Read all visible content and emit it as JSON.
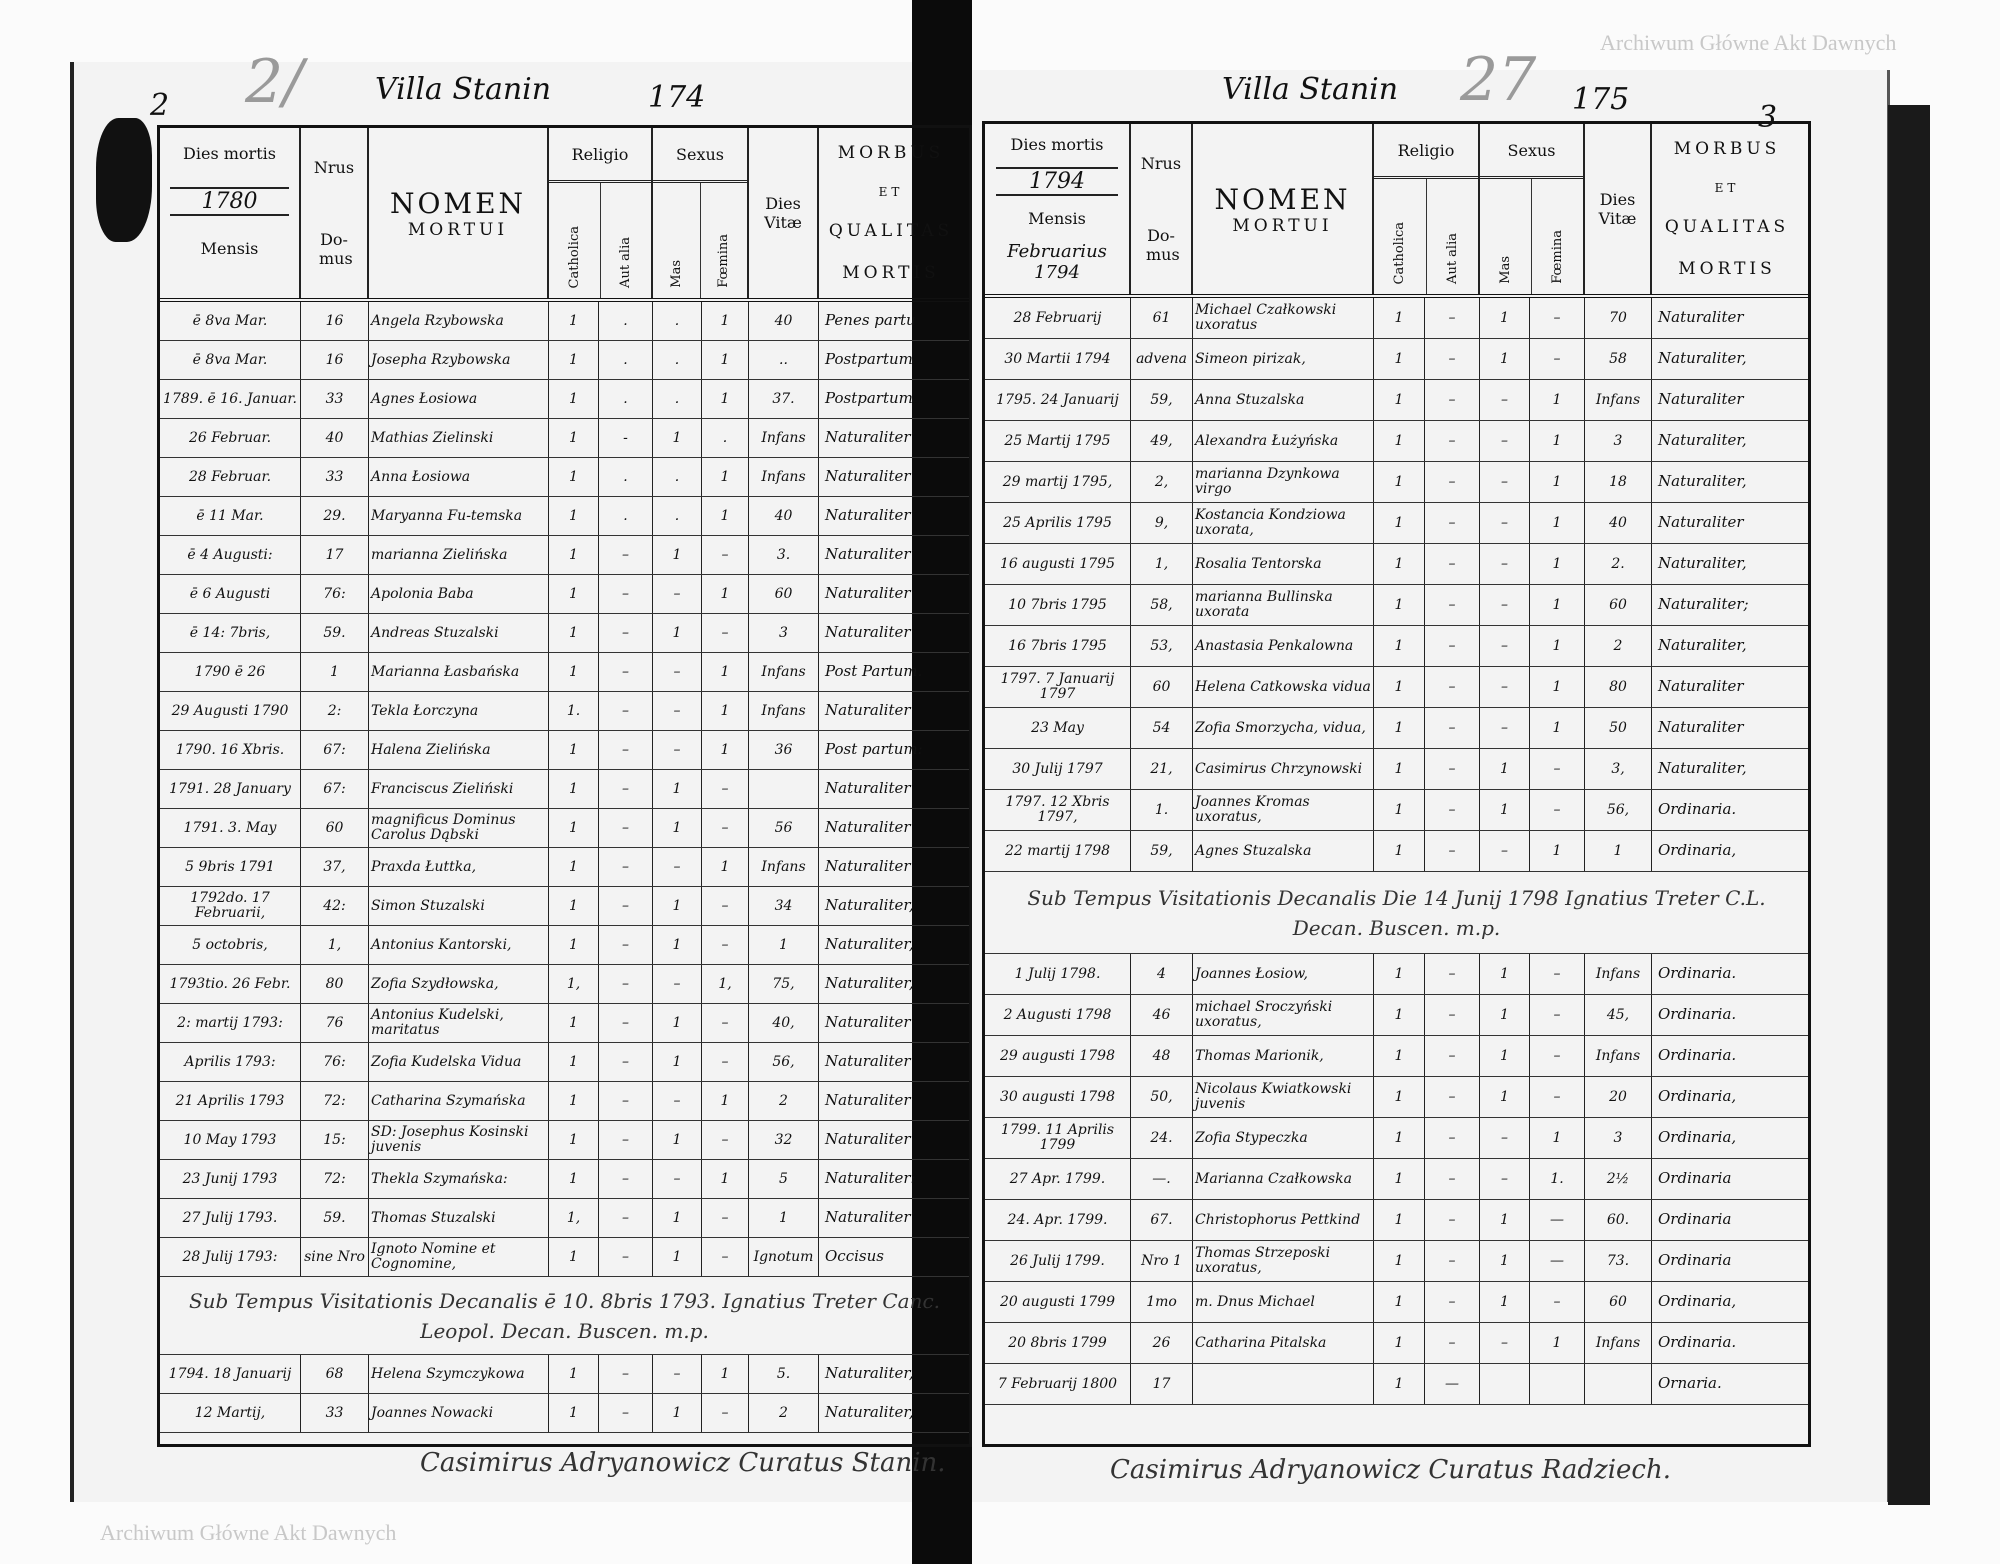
{
  "watermark": "Archiwum Główne Akt Dawnych",
  "header_labels": {
    "dies_mortis": "Dies mortis",
    "mensis": "Mensis",
    "nrus": "Nrus",
    "domus": "Do- mus",
    "nomen": "NOMEN",
    "mortui": "MORTUI",
    "religio": "Religio",
    "catholica": "Catholica",
    "aut_alia": "Aut alia",
    "sexus": "Sexus",
    "mas": "Mas",
    "foemina": "Fœmina",
    "dies_vitae": "Dies Vitæ",
    "morbus": "MORBUS",
    "et": "ET",
    "qualitas": "QUALITAS",
    "mortis": "MORTIS"
  },
  "left_page": {
    "folio": "2",
    "village": "Villa Stanin",
    "page_number": "174",
    "pencil_mark": "2/",
    "year": "1780",
    "month": "",
    "rows": [
      [
        "ē 8va Mar.",
        "16",
        "Angela Rzybowska",
        "1",
        ".",
        ".",
        "1",
        "40",
        "Penes partu"
      ],
      [
        "ē 8va Mar.",
        "16",
        "Josepha Rzybowska",
        "1",
        ".",
        ".",
        "1",
        "..",
        "Postpartum"
      ],
      [
        "1789. ē 16. Januar.",
        "33",
        "Agnes Łosiowa",
        "1",
        ".",
        ".",
        "1",
        "37.",
        "Postpartum"
      ],
      [
        "26 Februar.",
        "40",
        "Mathias Zielinski",
        "1",
        "-",
        "1",
        ".",
        "Infans",
        "Naturaliter"
      ],
      [
        "28 Februar.",
        "33",
        "Anna Łosiowa",
        "1",
        ".",
        ".",
        "1",
        "Infans",
        "Naturaliter"
      ],
      [
        "ē 11 Mar.",
        "29.",
        "Maryanna Fu-temska",
        "1",
        ".",
        ".",
        "1",
        "40",
        "Naturaliter"
      ],
      [
        "ē 4 Augusti:",
        "17",
        "marianna Zielińska",
        "1",
        "–",
        "1",
        "–",
        "3.",
        "Naturaliter"
      ],
      [
        "ē 6 Augusti",
        "76:",
        "Apolonia Baba",
        "1",
        "–",
        "–",
        "1",
        "60",
        "Naturaliter"
      ],
      [
        "ē 14: 7bris,",
        "59.",
        "Andreas Stuzalski",
        "1",
        "–",
        "1",
        "–",
        "3",
        "Naturaliter"
      ],
      [
        "1790 ē 26",
        "1",
        "Marianna Łasbańska",
        "1",
        "–",
        "–",
        "1",
        "Infans",
        "Post Partum."
      ],
      [
        "29 Augusti 1790",
        "2:",
        "Tekla Łorczyna",
        "1.",
        "–",
        "–",
        "1",
        "Infans",
        "Naturaliter"
      ],
      [
        "1790. 16 Xbris.",
        "67:",
        "Halena Zielińska",
        "1",
        "–",
        "–",
        "1",
        "36",
        "Post partum:"
      ],
      [
        "1791. 28 January",
        "67:",
        "Franciscus Zieliński",
        "1",
        "–",
        "1",
        "–",
        "",
        "Naturaliter"
      ],
      [
        "1791. 3. May",
        "60",
        "magnificus Dominus Carolus Dąbski",
        "1",
        "–",
        "1",
        "–",
        "56",
        "Naturaliter"
      ],
      [
        "5 9bris 1791",
        "37,",
        "Praxda Łuttka,",
        "1",
        "–",
        "–",
        "1",
        "Infans",
        "Naturaliter"
      ],
      [
        "1792do. 17 Februarii,",
        "42:",
        "Simon Stuzalski",
        "1",
        "–",
        "1",
        "–",
        "34",
        "Naturaliter,"
      ],
      [
        "5 octobris,",
        "1,",
        "Antonius Kantorski,",
        "1",
        "–",
        "1",
        "–",
        "1",
        "Naturaliter,"
      ],
      [
        "1793tio. 26 Febr.",
        "80",
        "Zofia Szydłowska,",
        "1,",
        "–",
        "–",
        "1,",
        "75,",
        "Naturaliter,"
      ],
      [
        "2: martij 1793:",
        "76",
        "Antonius Kudelski, maritatus",
        "1",
        "–",
        "1",
        "–",
        "40,",
        "Naturaliter"
      ],
      [
        "Aprilis 1793:",
        "76:",
        "Zofia Kudelska Vidua",
        "1",
        "–",
        "1",
        "–",
        "56,",
        "Naturaliter"
      ],
      [
        "21 Aprilis 1793",
        "72:",
        "Catharina Szymańska",
        "1",
        "–",
        "–",
        "1",
        "2",
        "Naturaliter"
      ],
      [
        "10 May 1793",
        "15:",
        "SD: Josephus Kosinski juvenis",
        "1",
        "–",
        "1",
        "–",
        "32",
        "Naturaliter"
      ],
      [
        "23 Junij 1793",
        "72:",
        "Thekla Szymańska:",
        "1",
        "–",
        "–",
        "1",
        "5",
        "Naturaliter:"
      ],
      [
        "27 Julij 1793.",
        "59.",
        "Thomas Stuzalski",
        "1,",
        "–",
        "1",
        "–",
        "1",
        "Naturaliter"
      ],
      [
        "28 Julij 1793:",
        "sine Nro",
        "Ignoto Nomine et Cognomine,",
        "1",
        "–",
        "1",
        "–",
        "Ignotum",
        "Occisus"
      ],
      [
        "1794. 18 Januarij",
        "68",
        "Helena Szymczykowa",
        "1",
        "–",
        "–",
        "1",
        "5.",
        "Naturaliter,"
      ],
      [
        "12 Martij,",
        "33",
        "Joannes Nowacki",
        "1",
        "–",
        "1",
        "–",
        "2",
        "Naturaliter,"
      ]
    ],
    "note": "Sub Tempus Visitationis Decanalis ē 10. 8bris 1793. Ignatius Treter Canc. Leopol. Decan. Buscen. m.p.",
    "signature": "Casimirus Adryanowicz Curatus Stanin."
  },
  "right_page": {
    "folio": "3",
    "village": "Villa Stanin",
    "page_number": "175",
    "pencil_mark": "27",
    "year": "1794",
    "month": "Februarius 1794",
    "rows": [
      [
        "28 Februarij",
        "61",
        "Michael Czałkowski uxoratus",
        "1",
        "–",
        "1",
        "–",
        "70",
        "Naturaliter"
      ],
      [
        "30 Martii 1794",
        "advena",
        "Simeon pirizak,",
        "1",
        "–",
        "1",
        "–",
        "58",
        "Naturaliter,"
      ],
      [
        "1795. 24 Januarij",
        "59,",
        "Anna Stuzalska",
        "1",
        "–",
        "–",
        "1",
        "Infans",
        "Naturaliter"
      ],
      [
        "25 Martij 1795",
        "49,",
        "Alexandra Łużyńska",
        "1",
        "–",
        "–",
        "1",
        "3",
        "Naturaliter,"
      ],
      [
        "29 martij 1795,",
        "2,",
        "marianna Dzynkowa virgo",
        "1",
        "–",
        "–",
        "1",
        "18",
        "Naturaliter,"
      ],
      [
        "25 Aprilis 1795",
        "9,",
        "Kostancia Kondziowa uxorata,",
        "1",
        "–",
        "–",
        "1",
        "40",
        "Naturaliter"
      ],
      [
        "16 augusti 1795",
        "1,",
        "Rosalia Tentorska",
        "1",
        "–",
        "–",
        "1",
        "2.",
        "Naturaliter,"
      ],
      [
        "10 7bris 1795",
        "58,",
        "marianna Bullinska uxorata",
        "1",
        "–",
        "–",
        "1",
        "60",
        "Naturaliter;"
      ],
      [
        "16 7bris 1795",
        "53,",
        "Anastasia Penkalowna",
        "1",
        "–",
        "–",
        "1",
        "2",
        "Naturaliter,"
      ],
      [
        "1797. 7 Januarij 1797",
        "60",
        "Helena Catkowska vidua",
        "1",
        "–",
        "–",
        "1",
        "80",
        "Naturaliter"
      ],
      [
        "23 May",
        "54",
        "Zofia Smorzycha, vidua,",
        "1",
        "–",
        "–",
        "1",
        "50",
        "Naturaliter"
      ],
      [
        "30 Julij 1797",
        "21,",
        "Casimirus Chrzynowski",
        "1",
        "–",
        "1",
        "–",
        "3,",
        "Naturaliter,"
      ],
      [
        "1797. 12 Xbris 1797,",
        "1.",
        "Joannes Kromas uxoratus,",
        "1",
        "–",
        "1",
        "–",
        "56,",
        "Ordinaria."
      ],
      [
        "22 martij 1798",
        "59,",
        "Agnes Stuzalska",
        "1",
        "–",
        "–",
        "1",
        "1",
        "Ordinaria,"
      ],
      [
        "1 Julij 1798.",
        "4",
        "Joannes Łosiow,",
        "1",
        "–",
        "1",
        "–",
        "Infans",
        "Ordinaria."
      ],
      [
        "2 Augusti 1798",
        "46",
        "michael Sroczyński uxoratus,",
        "1",
        "–",
        "1",
        "–",
        "45,",
        "Ordinaria."
      ],
      [
        "29 augusti 1798",
        "48",
        "Thomas Marionik,",
        "1",
        "–",
        "1",
        "–",
        "Infans",
        "Ordinaria."
      ],
      [
        "30 augusti 1798",
        "50,",
        "Nicolaus Kwiatkowski juvenis",
        "1",
        "–",
        "1",
        "–",
        "20",
        "Ordinaria,"
      ],
      [
        "1799. 11 Aprilis 1799",
        "24.",
        "Zofia Stypeczka",
        "1",
        "–",
        "–",
        "1",
        "3",
        "Ordinaria,"
      ],
      [
        "27 Apr. 1799.",
        "—.",
        "Marianna Czałkowska",
        "1",
        "–",
        "–",
        "1.",
        "2½",
        "Ordinaria"
      ],
      [
        "24. Apr. 1799.",
        "67.",
        "Christophorus Pettkind",
        "1",
        "–",
        "1",
        "—",
        "60.",
        "Ordinaria"
      ],
      [
        "26 Julij 1799.",
        "Nro 1",
        "Thomas Strzeposki uxoratus,",
        "1",
        "–",
        "1",
        "—",
        "73.",
        "Ordinaria"
      ],
      [
        "20 augusti 1799",
        "1mo",
        "m. Dnus Michael",
        "1",
        "–",
        "1",
        "–",
        "60",
        "Ordinaria,"
      ],
      [
        "20 8bris 1799",
        "26",
        "Catharina Pitalska",
        "1",
        "–",
        "–",
        "1",
        "Infans",
        "Ordinaria."
      ],
      [
        "7 Februarij 1800",
        "17",
        "",
        "1",
        "—",
        "",
        "",
        "",
        "Ornaria."
      ]
    ],
    "note": "Sub Tempus Visitationis Decanalis Die 14 Junij 1798 Ignatius Treter C.L. Decan. Buscen. m.p.",
    "signature": "Casimirus Adryanowicz Curatus Radziech."
  }
}
